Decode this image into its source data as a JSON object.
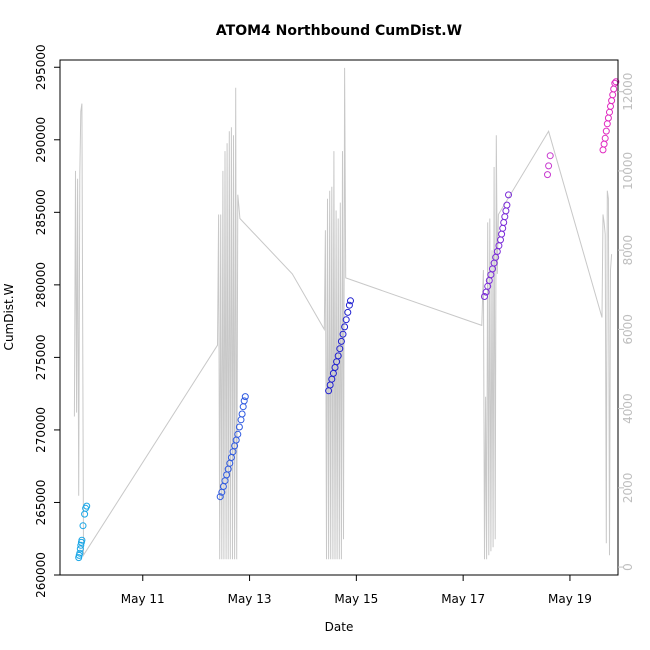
{
  "chart_data": {
    "type": "scatter",
    "title": "ATOM4 Northbound CumDist.W",
    "xlabel": "Date",
    "ylabel": "CumDist.W",
    "x_ticks": [
      "May 11",
      "May 13",
      "May 15",
      "May 17",
      "May 19"
    ],
    "x_tick_days": [
      11,
      13,
      15,
      17,
      19
    ],
    "xlim": [
      9.45,
      19.9
    ],
    "ylim": [
      260000,
      295500
    ],
    "y_ticks": [
      260000,
      265000,
      270000,
      275000,
      280000,
      285000,
      290000,
      295000
    ],
    "y2lim": [
      -200,
      12800
    ],
    "y2_ticks": [
      0,
      2000,
      4000,
      6000,
      8000,
      10000,
      12000
    ],
    "secondary_line_color": "#c8c8c8",
    "grid": false,
    "legend": "none",
    "point_groups": [
      {
        "color": "#1aa6e6",
        "points": [
          [
            9.8,
            261200
          ],
          [
            9.81,
            261350
          ],
          [
            9.82,
            261500
          ],
          [
            9.83,
            261800
          ],
          [
            9.84,
            262050
          ],
          [
            9.85,
            262250
          ],
          [
            9.86,
            262400
          ],
          [
            9.88,
            263400
          ],
          [
            9.91,
            264200
          ],
          [
            9.93,
            264600
          ],
          [
            9.95,
            264750
          ]
        ]
      },
      {
        "color": "#2f5ae0",
        "points": [
          [
            12.45,
            265400
          ],
          [
            12.48,
            265700
          ],
          [
            12.51,
            266100
          ],
          [
            12.54,
            266500
          ],
          [
            12.57,
            266900
          ],
          [
            12.6,
            267300
          ],
          [
            12.63,
            267700
          ],
          [
            12.66,
            268100
          ],
          [
            12.69,
            268500
          ],
          [
            12.72,
            268900
          ],
          [
            12.75,
            269300
          ],
          [
            12.78,
            269700
          ],
          [
            12.81,
            270200
          ],
          [
            12.84,
            270700
          ],
          [
            12.86,
            271100
          ],
          [
            12.88,
            271600
          ],
          [
            12.9,
            272000
          ],
          [
            12.92,
            272300
          ]
        ]
      },
      {
        "color": "#2020d0",
        "points": [
          [
            14.48,
            272700
          ],
          [
            14.51,
            273100
          ],
          [
            14.54,
            273500
          ],
          [
            14.57,
            273900
          ],
          [
            14.6,
            274300
          ],
          [
            14.63,
            274700
          ],
          [
            14.66,
            275100
          ],
          [
            14.69,
            275600
          ],
          [
            14.72,
            276100
          ],
          [
            14.75,
            276600
          ],
          [
            14.78,
            277100
          ],
          [
            14.81,
            277600
          ],
          [
            14.84,
            278100
          ],
          [
            14.87,
            278600
          ],
          [
            14.89,
            278900
          ]
        ]
      },
      {
        "color": "#7a2ad8",
        "points": [
          [
            17.4,
            279200
          ],
          [
            17.43,
            279500
          ],
          [
            17.46,
            279900
          ],
          [
            17.49,
            280300
          ],
          [
            17.52,
            280700
          ],
          [
            17.55,
            281100
          ],
          [
            17.58,
            281500
          ],
          [
            17.61,
            281900
          ],
          [
            17.64,
            282300
          ],
          [
            17.67,
            282700
          ],
          [
            17.7,
            283100
          ],
          [
            17.72,
            283500
          ],
          [
            17.74,
            283900
          ],
          [
            17.76,
            284300
          ],
          [
            17.78,
            284700
          ],
          [
            17.8,
            285100
          ],
          [
            17.82,
            285500
          ],
          [
            17.85,
            286200
          ]
        ]
      },
      {
        "color": "#c83ad0",
        "points": [
          [
            18.58,
            287600
          ],
          [
            18.6,
            288200
          ],
          [
            18.63,
            288900
          ]
        ]
      },
      {
        "color": "#e02ac0",
        "points": [
          [
            19.62,
            289300
          ],
          [
            19.64,
            289700
          ],
          [
            19.66,
            290100
          ],
          [
            19.68,
            290600
          ],
          [
            19.7,
            291100
          ],
          [
            19.72,
            291500
          ],
          [
            19.74,
            291900
          ],
          [
            19.76,
            292300
          ],
          [
            19.78,
            292700
          ],
          [
            19.8,
            293100
          ],
          [
            19.82,
            293500
          ],
          [
            19.84,
            293900
          ],
          [
            19.86,
            294000
          ]
        ]
      }
    ],
    "secondary_line": [
      [
        9.72,
        3800
      ],
      [
        9.74,
        10000
      ],
      [
        9.76,
        3900
      ],
      [
        9.78,
        9800
      ],
      [
        9.8,
        1800
      ],
      [
        9.82,
        9900
      ],
      [
        9.84,
        11500
      ],
      [
        9.86,
        11700
      ],
      [
        9.89,
        300
      ],
      [
        12.4,
        5600
      ],
      [
        12.42,
        8900
      ],
      [
        12.44,
        200
      ],
      [
        12.46,
        8900
      ],
      [
        12.48,
        200
      ],
      [
        12.5,
        10000
      ],
      [
        12.52,
        200
      ],
      [
        12.54,
        10500
      ],
      [
        12.56,
        200
      ],
      [
        12.58,
        10700
      ],
      [
        12.6,
        200
      ],
      [
        12.62,
        11000
      ],
      [
        12.64,
        200
      ],
      [
        12.66,
        11100
      ],
      [
        12.68,
        200
      ],
      [
        12.7,
        10900
      ],
      [
        12.72,
        200
      ],
      [
        12.74,
        12100
      ],
      [
        12.76,
        200
      ],
      [
        12.78,
        9400
      ],
      [
        12.8,
        9100
      ],
      [
        12.82,
        8800
      ],
      [
        13.8,
        7400
      ],
      [
        14.4,
        6000
      ],
      [
        14.42,
        8500
      ],
      [
        14.44,
        200
      ],
      [
        14.46,
        9300
      ],
      [
        14.48,
        200
      ],
      [
        14.5,
        9500
      ],
      [
        14.52,
        200
      ],
      [
        14.54,
        9600
      ],
      [
        14.56,
        200
      ],
      [
        14.58,
        10500
      ],
      [
        14.6,
        200
      ],
      [
        14.62,
        9000
      ],
      [
        14.64,
        200
      ],
      [
        14.66,
        8800
      ],
      [
        14.68,
        200
      ],
      [
        14.7,
        9200
      ],
      [
        14.72,
        200
      ],
      [
        14.74,
        10500
      ],
      [
        14.76,
        700
      ],
      [
        14.78,
        12600
      ],
      [
        14.8,
        7300
      ],
      [
        17.35,
        6100
      ],
      [
        17.38,
        7500
      ],
      [
        17.4,
        200
      ],
      [
        17.42,
        4300
      ],
      [
        17.44,
        200
      ],
      [
        17.46,
        8700
      ],
      [
        17.48,
        300
      ],
      [
        17.5,
        8800
      ],
      [
        17.52,
        400
      ],
      [
        17.54,
        8000
      ],
      [
        17.56,
        500
      ],
      [
        17.58,
        10100
      ],
      [
        17.6,
        700
      ],
      [
        17.62,
        10900
      ],
      [
        17.64,
        7400
      ],
      [
        17.66,
        8900
      ],
      [
        18.6,
        11000
      ],
      [
        19.6,
        6300
      ],
      [
        19.62,
        8900
      ],
      [
        19.64,
        8700
      ],
      [
        19.66,
        8400
      ],
      [
        19.68,
        600
      ],
      [
        19.7,
        9500
      ],
      [
        19.72,
        9300
      ],
      [
        19.74,
        300
      ],
      [
        19.76,
        7500
      ],
      [
        19.78,
        7900
      ]
    ]
  }
}
